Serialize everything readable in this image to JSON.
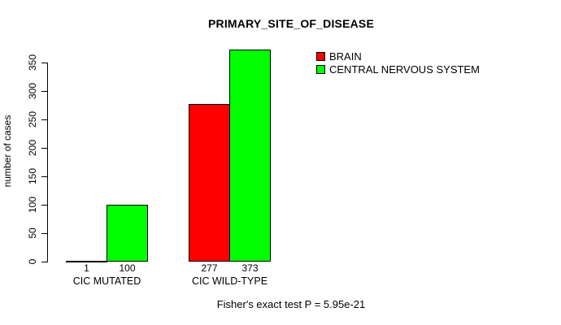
{
  "chart_data": {
    "type": "bar",
    "title": "PRIMARY_SITE_OF_DISEASE",
    "ylabel": "number of cases",
    "xlabel": "",
    "ylim": [
      0,
      350
    ],
    "yticks": [
      0,
      50,
      100,
      150,
      200,
      250,
      300,
      350
    ],
    "grid": false,
    "legend_position": "top-right",
    "categories": [
      "CIC MUTATED",
      "CIC WILD-TYPE"
    ],
    "series": [
      {
        "name": "BRAIN",
        "color": "#ff0000",
        "values": [
          1,
          277
        ]
      },
      {
        "name": "CENTRAL NERVOUS SYSTEM",
        "color": "#00ff00",
        "values": [
          100,
          373
        ]
      }
    ],
    "bar_value_labels_shown": true,
    "footnote": "Fisher's exact test P = 5.95e-21"
  },
  "colors": {
    "background": "#ffffff",
    "axis": "#000000",
    "text": "#000000",
    "bar_border": "#000000"
  }
}
